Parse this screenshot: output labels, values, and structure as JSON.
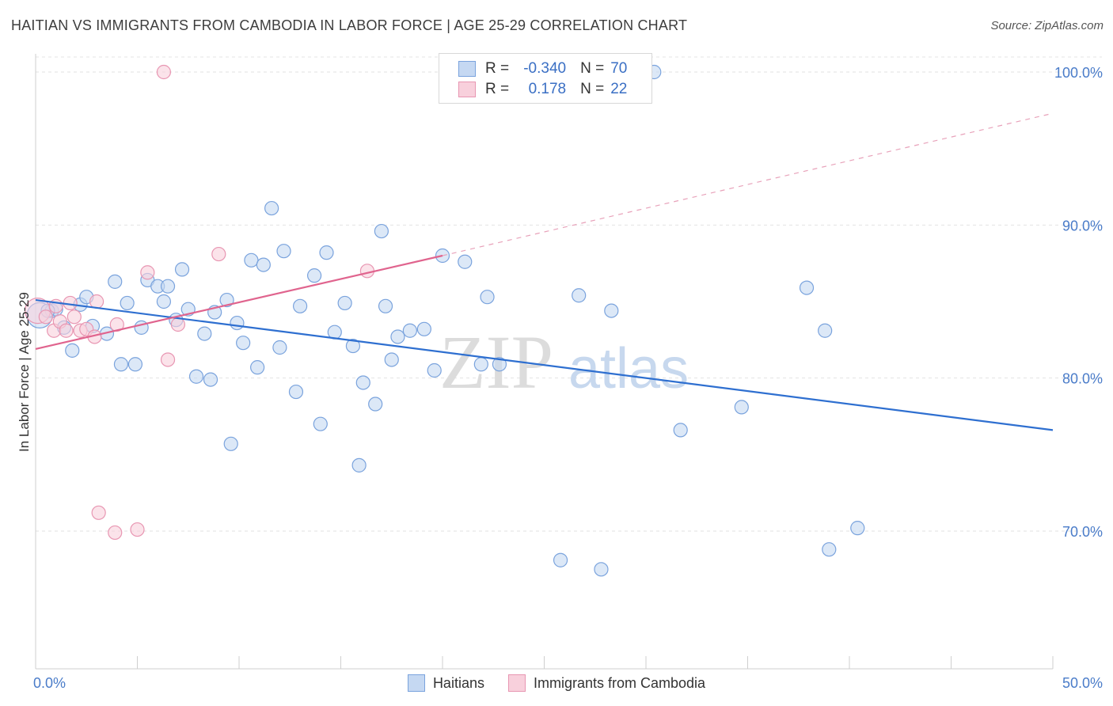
{
  "header": {
    "title": "HAITIAN VS IMMIGRANTS FROM CAMBODIA IN LABOR FORCE | AGE 25-29 CORRELATION CHART",
    "source": "Source: ZipAtlas.com"
  },
  "legend": {
    "rows": [
      {
        "r_label": "R =",
        "r_value": "-0.340",
        "n_label": "N =",
        "n_value": "70"
      },
      {
        "r_label": "R =",
        "r_value": "0.178",
        "n_label": "N =",
        "n_value": "22"
      }
    ]
  },
  "watermark": {
    "zip": "ZIP",
    "atlas": "atlas"
  },
  "colors": {
    "blue_fill": "#c5d8f2",
    "blue_stroke": "#7aa3dd",
    "blue_line": "#2e6fd0",
    "pink_fill": "#f8d0dc",
    "pink_stroke": "#e896b2",
    "pink_line": "#e0648e",
    "tick_text": "#4a7cc9"
  },
  "chart_data": {
    "type": "scatter",
    "ylabel": "In Labor Force | Age 25-29",
    "x_ticks": [
      "0.0%",
      "50.0%"
    ],
    "y_ticks": [
      "100.0%",
      "90.0%",
      "80.0%",
      "70.0%"
    ],
    "xlim": [
      0,
      50
    ],
    "ylim": [
      61,
      101.5
    ],
    "grid": true,
    "series": [
      {
        "name": "Haitians",
        "r": -0.34,
        "n": 70,
        "trend": {
          "x": [
            0,
            50
          ],
          "y": [
            85.1,
            76.6
          ],
          "dashed_extension": false
        },
        "points": [
          [
            0.2,
            84.1
          ],
          [
            0.8,
            84.4
          ],
          [
            1.0,
            84.5
          ],
          [
            1.4,
            83.3
          ],
          [
            1.8,
            81.8
          ],
          [
            2.2,
            84.8
          ],
          [
            2.5,
            85.3
          ],
          [
            2.8,
            83.4
          ],
          [
            3.5,
            82.9
          ],
          [
            3.9,
            86.3
          ],
          [
            4.2,
            80.9
          ],
          [
            4.5,
            84.9
          ],
          [
            4.9,
            80.9
          ],
          [
            5.2,
            83.3
          ],
          [
            5.5,
            86.4
          ],
          [
            6.0,
            86.0
          ],
          [
            6.3,
            85.0
          ],
          [
            6.5,
            86.0
          ],
          [
            6.9,
            83.8
          ],
          [
            7.2,
            87.1
          ],
          [
            7.5,
            84.5
          ],
          [
            7.9,
            80.1
          ],
          [
            8.3,
            82.9
          ],
          [
            8.6,
            79.9
          ],
          [
            8.8,
            84.3
          ],
          [
            9.4,
            85.1
          ],
          [
            9.6,
            75.7
          ],
          [
            9.9,
            83.6
          ],
          [
            10.2,
            82.3
          ],
          [
            10.6,
            87.7
          ],
          [
            10.9,
            80.7
          ],
          [
            11.2,
            87.4
          ],
          [
            11.6,
            91.1
          ],
          [
            12.0,
            82.0
          ],
          [
            12.2,
            88.3
          ],
          [
            12.8,
            79.1
          ],
          [
            13.0,
            84.7
          ],
          [
            13.7,
            86.7
          ],
          [
            14.0,
            77.0
          ],
          [
            14.3,
            88.2
          ],
          [
            14.7,
            83.0
          ],
          [
            15.2,
            84.9
          ],
          [
            15.6,
            82.1
          ],
          [
            15.9,
            74.3
          ],
          [
            16.1,
            79.7
          ],
          [
            16.7,
            78.3
          ],
          [
            17.0,
            89.6
          ],
          [
            17.2,
            84.7
          ],
          [
            17.5,
            81.2
          ],
          [
            17.8,
            82.7
          ],
          [
            18.4,
            83.1
          ],
          [
            19.1,
            83.2
          ],
          [
            19.6,
            80.5
          ],
          [
            20.0,
            88.0
          ],
          [
            21.1,
            87.6
          ],
          [
            21.9,
            80.9
          ],
          [
            22.2,
            85.3
          ],
          [
            22.8,
            80.9
          ],
          [
            25.8,
            68.1
          ],
          [
            26.7,
            85.4
          ],
          [
            27.8,
            67.5
          ],
          [
            28.3,
            84.4
          ],
          [
            30.4,
            100.0
          ],
          [
            31.7,
            76.6
          ],
          [
            34.7,
            78.1
          ],
          [
            37.9,
            85.9
          ],
          [
            38.8,
            83.1
          ],
          [
            39.0,
            68.8
          ],
          [
            40.4,
            70.2
          ],
          [
            0.6,
            84.4
          ]
        ]
      },
      {
        "name": "Immigrants from Cambodia",
        "r": 0.178,
        "n": 22,
        "trend": {
          "x": [
            0,
            20
          ],
          "y": [
            81.9,
            88.0
          ],
          "dashed_extension": {
            "x": [
              20,
              50
            ],
            "y": [
              88.0,
              97.3
            ]
          }
        },
        "points": [
          [
            0.1,
            84.4
          ],
          [
            0.9,
            83.1
          ],
          [
            1.2,
            83.7
          ],
          [
            1.5,
            83.1
          ],
          [
            1.7,
            84.9
          ],
          [
            1.9,
            84.0
          ],
          [
            2.2,
            83.1
          ],
          [
            2.5,
            83.2
          ],
          [
            2.9,
            82.7
          ],
          [
            3.0,
            85.0
          ],
          [
            3.1,
            71.2
          ],
          [
            3.9,
            69.9
          ],
          [
            4.0,
            83.5
          ],
          [
            5.0,
            70.1
          ],
          [
            5.5,
            86.9
          ],
          [
            6.3,
            100.0
          ],
          [
            6.5,
            81.2
          ],
          [
            7.0,
            83.5
          ],
          [
            9.0,
            88.1
          ],
          [
            16.3,
            87.0
          ],
          [
            0.5,
            84.0
          ],
          [
            1.0,
            84.7
          ]
        ]
      }
    ],
    "legend": {
      "placement": "bottom-center",
      "labels": [
        "Haitians",
        "Immigrants from Cambodia"
      ]
    }
  }
}
